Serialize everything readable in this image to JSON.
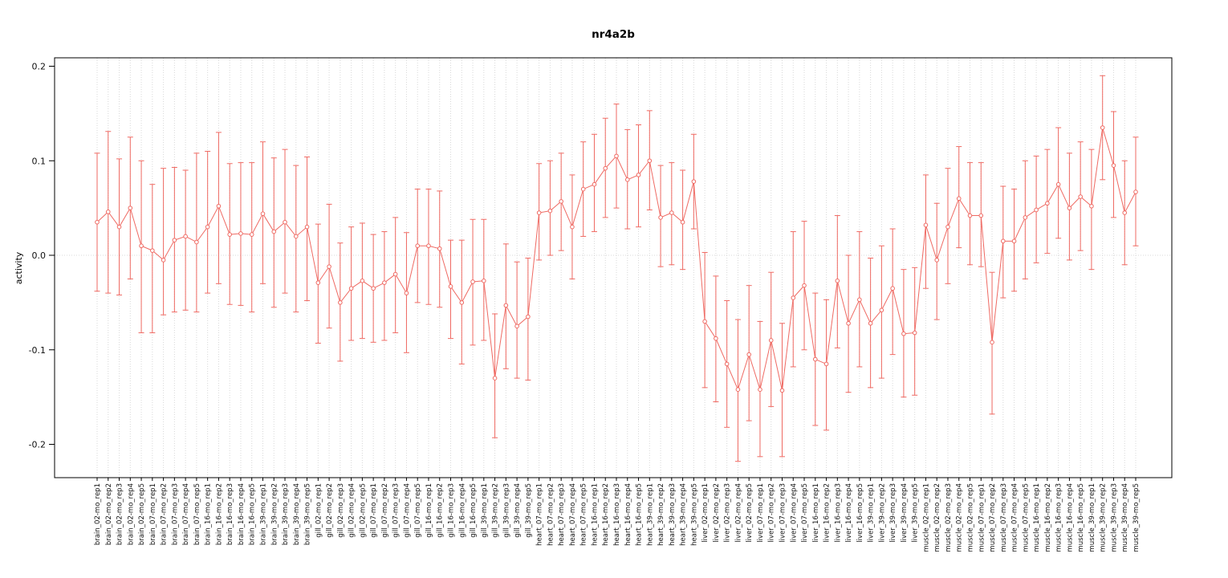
{
  "chart_data": {
    "type": "line",
    "title": "nr4a2b",
    "ylabel": "activity",
    "xlabel": "",
    "ylim": [
      -0.235,
      0.21
    ],
    "yticks": [
      -0.2,
      -0.1,
      0.0,
      0.1,
      0.2
    ],
    "grid": "vertical-dotted-per-category-and-horizontal-dotted-at-zero",
    "legend": "none",
    "point_style": "open-circle",
    "error_bars": true,
    "colors": {
      "series": "#ef6a63",
      "grid": "#d8d8d8",
      "axis": "#000000",
      "tick_text": "#111111"
    },
    "categories": [
      "brain_02-mo_rep1",
      "brain_02-mo_rep2",
      "brain_02-mo_rep3",
      "brain_02-mo_rep4",
      "brain_02-mo_rep5",
      "brain_07-mo_rep1",
      "brain_07-mo_rep2",
      "brain_07-mo_rep3",
      "brain_07-mo_rep4",
      "brain_07-mo_rep5",
      "brain_16-mo_rep1",
      "brain_16-mo_rep2",
      "brain_16-mo_rep3",
      "brain_16-mo_rep4",
      "brain_16-mo_rep5",
      "brain_39-mo_rep1",
      "brain_39-mo_rep2",
      "brain_39-mo_rep3",
      "brain_39-mo_rep4",
      "brain_39-mo_rep5",
      "gill_02-mo_rep1",
      "gill_02-mo_rep2",
      "gill_02-mo_rep3",
      "gill_02-mo_rep4",
      "gill_02-mo_rep5",
      "gill_07-mo_rep1",
      "gill_07-mo_rep2",
      "gill_07-mo_rep3",
      "gill_07-mo_rep4",
      "gill_07-mo_rep5",
      "gill_16-mo_rep1",
      "gill_16-mo_rep2",
      "gill_16-mo_rep3",
      "gill_16-mo_rep4",
      "gill_16-mo_rep5",
      "gill_39-mo_rep1",
      "gill_39-mo_rep2",
      "gill_39-mo_rep3",
      "gill_39-mo_rep4",
      "gill_39-mo_rep5",
      "heart_07-mo_rep1",
      "heart_07-mo_rep2",
      "heart_07-mo_rep3",
      "heart_07-mo_rep4",
      "heart_07-mo_rep5",
      "heart_16-mo_rep1",
      "heart_16-mo_rep2",
      "heart_16-mo_rep3",
      "heart_16-mo_rep4",
      "heart_16-mo_rep5",
      "heart_39-mo_rep1",
      "heart_39-mo_rep2",
      "heart_39-mo_rep3",
      "heart_39-mo_rep4",
      "heart_39-mo_rep5",
      "liver_02-mo_rep1",
      "liver_02-mo_rep2",
      "liver_02-mo_rep3",
      "liver_02-mo_rep4",
      "liver_02-mo_rep5",
      "liver_07-mo_rep1",
      "liver_07-mo_rep2",
      "liver_07-mo_rep3",
      "liver_07-mo_rep4",
      "liver_07-mo_rep5",
      "liver_16-mo_rep1",
      "liver_16-mo_rep2",
      "liver_16-mo_rep3",
      "liver_16-mo_rep4",
      "liver_16-mo_rep5",
      "liver_39-mo_rep1",
      "liver_39-mo_rep2",
      "liver_39-mo_rep3",
      "liver_39-mo_rep4",
      "liver_39-mo_rep5",
      "muscle_02-mo_rep1",
      "muscle_02-mo_rep2",
      "muscle_02-mo_rep3",
      "muscle_02-mo_rep4",
      "muscle_02-mo_rep5",
      "muscle_07-mo_rep1",
      "muscle_07-mo_rep2",
      "muscle_07-mo_rep3",
      "muscle_07-mo_rep4",
      "muscle_07-mo_rep5",
      "muscle_16-mo_rep1",
      "muscle_16-mo_rep2",
      "muscle_16-mo_rep3",
      "muscle_16-mo_rep4",
      "muscle_16-mo_rep5",
      "muscle_39-mo_rep1",
      "muscle_39-mo_rep2",
      "muscle_39-mo_rep3",
      "muscle_39-mo_rep4",
      "muscle_39-mo_rep5"
    ],
    "values": [
      0.035,
      0.046,
      0.03,
      0.05,
      0.01,
      0.005,
      -0.005,
      0.016,
      0.02,
      0.014,
      0.03,
      0.052,
      0.022,
      0.023,
      0.022,
      0.044,
      0.025,
      0.035,
      0.02,
      0.03,
      -0.029,
      -0.012,
      -0.05,
      -0.035,
      -0.027,
      -0.035,
      -0.029,
      -0.02,
      -0.04,
      0.01,
      0.01,
      0.007,
      -0.033,
      -0.05,
      -0.028,
      -0.027,
      -0.13,
      -0.053,
      -0.075,
      -0.065,
      0.045,
      0.047,
      0.057,
      0.03,
      0.07,
      0.075,
      0.092,
      0.105,
      0.08,
      0.085,
      0.1,
      0.04,
      0.045,
      0.035,
      0.078,
      -0.07,
      -0.088,
      -0.115,
      -0.142,
      -0.105,
      -0.142,
      -0.09,
      -0.143,
      -0.045,
      -0.032,
      -0.11,
      -0.115,
      -0.027,
      -0.072,
      -0.047,
      -0.072,
      -0.058,
      -0.035,
      -0.083,
      -0.082,
      0.032,
      -0.005,
      0.03,
      0.06,
      0.042,
      0.042,
      -0.092,
      0.015,
      0.015,
      0.04,
      0.048,
      0.055,
      0.075,
      0.05,
      0.062,
      0.052,
      0.135,
      0.095,
      0.045,
      0.067
    ],
    "error_low": [
      -0.038,
      -0.04,
      -0.042,
      -0.025,
      -0.082,
      -0.082,
      -0.063,
      -0.06,
      -0.058,
      -0.06,
      -0.04,
      -0.03,
      -0.052,
      -0.053,
      -0.06,
      -0.03,
      -0.055,
      -0.04,
      -0.06,
      -0.048,
      -0.093,
      -0.077,
      -0.112,
      -0.09,
      -0.088,
      -0.092,
      -0.09,
      -0.082,
      -0.103,
      -0.05,
      -0.052,
      -0.055,
      -0.088,
      -0.115,
      -0.095,
      -0.09,
      -0.193,
      -0.12,
      -0.13,
      -0.132,
      -0.005,
      0.0,
      0.005,
      -0.025,
      0.02,
      0.025,
      0.04,
      0.05,
      0.028,
      0.03,
      0.048,
      -0.012,
      -0.01,
      -0.015,
      0.028,
      -0.14,
      -0.155,
      -0.182,
      -0.218,
      -0.175,
      -0.213,
      -0.16,
      -0.213,
      -0.118,
      -0.1,
      -0.18,
      -0.185,
      -0.098,
      -0.145,
      -0.118,
      -0.14,
      -0.13,
      -0.105,
      -0.15,
      -0.148,
      -0.035,
      -0.068,
      -0.03,
      0.008,
      -0.01,
      -0.012,
      -0.168,
      -0.045,
      -0.038,
      -0.025,
      -0.008,
      0.002,
      0.018,
      -0.005,
      0.005,
      -0.015,
      0.08,
      0.04,
      -0.01,
      0.01
    ],
    "error_high": [
      0.108,
      0.131,
      0.102,
      0.125,
      0.1,
      0.075,
      0.092,
      0.093,
      0.09,
      0.108,
      0.11,
      0.13,
      0.097,
      0.098,
      0.098,
      0.12,
      0.103,
      0.112,
      0.095,
      0.104,
      0.033,
      0.054,
      0.013,
      0.03,
      0.034,
      0.022,
      0.025,
      0.04,
      0.024,
      0.07,
      0.07,
      0.068,
      0.016,
      0.016,
      0.038,
      0.038,
      -0.062,
      0.012,
      -0.007,
      -0.003,
      0.097,
      0.1,
      0.108,
      0.085,
      0.12,
      0.128,
      0.145,
      0.16,
      0.133,
      0.138,
      0.153,
      0.095,
      0.098,
      0.09,
      0.128,
      0.003,
      -0.022,
      -0.048,
      -0.068,
      -0.032,
      -0.07,
      -0.018,
      -0.072,
      0.025,
      0.036,
      -0.04,
      -0.047,
      0.042,
      0.0,
      0.025,
      -0.003,
      0.01,
      0.028,
      -0.015,
      -0.013,
      0.085,
      0.055,
      0.092,
      0.115,
      0.098,
      0.098,
      -0.018,
      0.073,
      0.07,
      0.1,
      0.105,
      0.112,
      0.135,
      0.108,
      0.12,
      0.112,
      0.19,
      0.152,
      0.1,
      0.125
    ]
  }
}
